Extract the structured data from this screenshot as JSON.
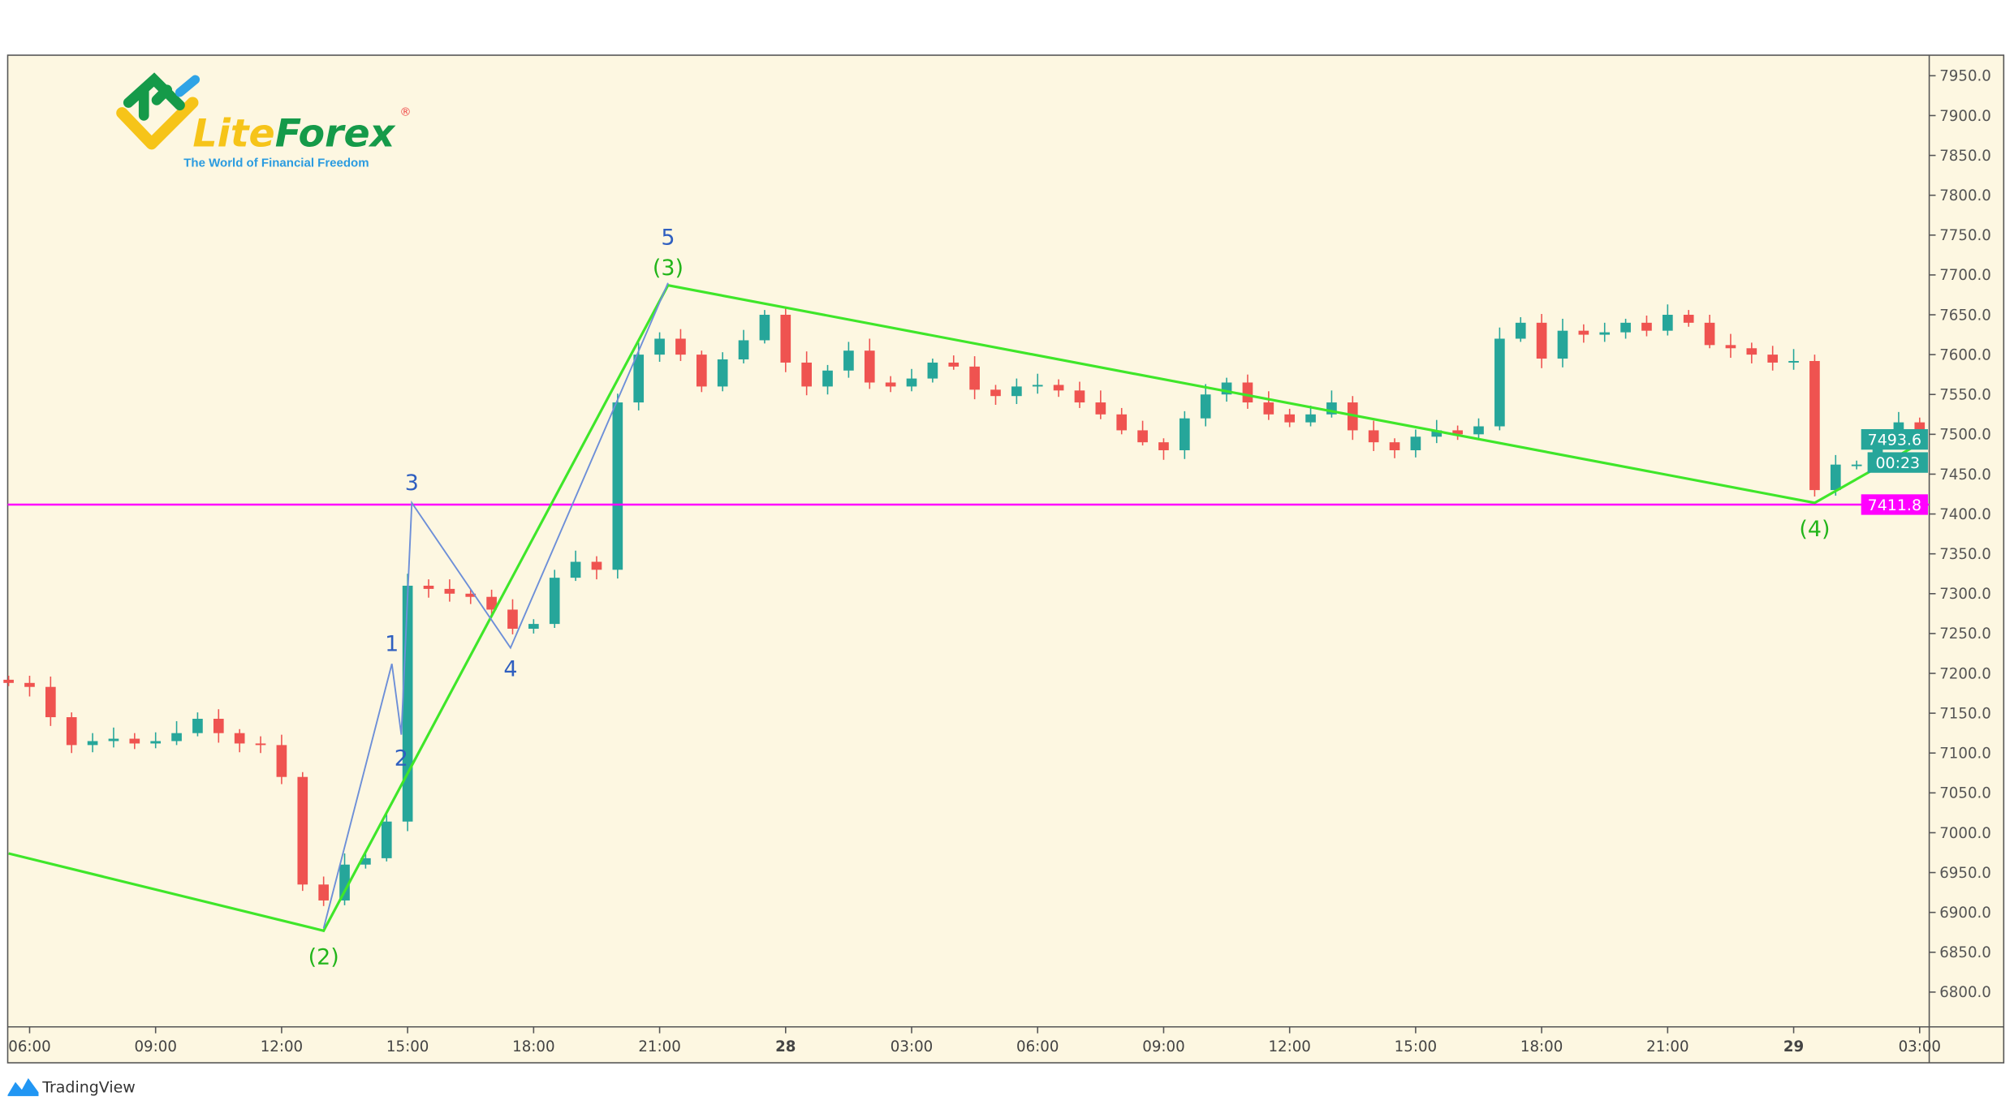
{
  "brand": {
    "logo_name": "LiteForex",
    "logo_part1": "Lite",
    "logo_part2": "Forex",
    "registered": "®",
    "tagline": "The World of Financial Freedom",
    "footer": "TradingView"
  },
  "colors": {
    "background": "#fdf7e1",
    "up": "#26a69a",
    "down": "#ef5350",
    "wave_major": "#3fe62a",
    "wave_minor": "#6d8fd8",
    "wave_minor_label": "#2f5fc0",
    "wave_major_label": "#22b51a",
    "support": "#ff00ff",
    "last_price": "#26a69a"
  },
  "chart_data": {
    "type": "candlestick",
    "candle_interval": "30 min",
    "start_time": "27 05:30",
    "ylim": [
      6775,
      7975
    ],
    "y_ticks": [
      6800,
      6850,
      6900,
      6950,
      7000,
      7050,
      7100,
      7150,
      7200,
      7250,
      7300,
      7350,
      7400,
      7450,
      7500,
      7550,
      7600,
      7650,
      7700,
      7750,
      7800,
      7850,
      7900,
      7950
    ],
    "y_tick_labels": [
      "6800.0",
      "6850.0",
      "6900.0",
      "6950.0",
      "7000.0",
      "7050.0",
      "7100.0",
      "7150.0",
      "7200.0",
      "7250.0",
      "7300.0",
      "7350.0",
      "7400.0",
      "7450.0",
      "7500.0",
      "7550.0",
      "7600.0",
      "7650.0",
      "7700.0",
      "7750.0",
      "7800.0",
      "7850.0",
      "7900.0",
      "7950.0"
    ],
    "x_tick_labels": [
      "06:00",
      "09:00",
      "12:00",
      "15:00",
      "18:00",
      "21:00",
      "28",
      "03:00",
      "06:00",
      "09:00",
      "12:00",
      "15:00",
      "18:00",
      "21:00",
      "29",
      "03:00"
    ],
    "closes": [
      7188,
      7183,
      7145,
      7110,
      7115,
      7118,
      7112,
      7115,
      7125,
      7143,
      7125,
      7112,
      7110,
      7070,
      6935,
      6915,
      6960,
      6968,
      7014,
      7310,
      7306,
      7300,
      7296,
      7280,
      7256,
      7262,
      7320,
      7340,
      7330,
      7540,
      7600,
      7620,
      7600,
      7560,
      7594,
      7618,
      7650,
      7590,
      7560,
      7580,
      7605,
      7565,
      7560,
      7570,
      7590,
      7585,
      7556,
      7548,
      7560,
      7562,
      7555,
      7540,
      7525,
      7505,
      7490,
      7480,
      7520,
      7550,
      7565,
      7540,
      7525,
      7515,
      7525,
      7540,
      7505,
      7490,
      7480,
      7497,
      7505,
      7500,
      7510,
      7620,
      7640,
      7595,
      7630,
      7625,
      7628,
      7640,
      7630,
      7650,
      7640,
      7612,
      7608,
      7600,
      7590,
      7592,
      7430,
      7462,
      7462,
      7490,
      7515,
      7493.6
    ],
    "first_open": 7192,
    "wave_major": [
      {
        "label": "",
        "x": 0,
        "price": 6974
      },
      {
        "label": "(2)",
        "x": 15,
        "price": 6877
      },
      {
        "label": "(3)",
        "x": 31.4,
        "price": 7687
      },
      {
        "label": "(4)",
        "x": 86,
        "price": 7414
      },
      {
        "label": "",
        "x": 91.3,
        "price": 7493
      }
    ],
    "wave_minor": [
      {
        "label": "",
        "x": 15,
        "price": 6880
      },
      {
        "label": "1",
        "x": 18.25,
        "price": 7212
      },
      {
        "label": "2",
        "x": 18.7,
        "price": 7123
      },
      {
        "label": "3",
        "x": 19.2,
        "price": 7414
      },
      {
        "label": "4",
        "x": 23.9,
        "price": 7232
      },
      {
        "label": "5",
        "x": 31.4,
        "price": 7690
      }
    ],
    "support_level": 7411.8,
    "support_label": "7411.8",
    "last_price": 7493.6,
    "last_price_label": "7493.6",
    "countdown": "00:23",
    "grid": false
  }
}
